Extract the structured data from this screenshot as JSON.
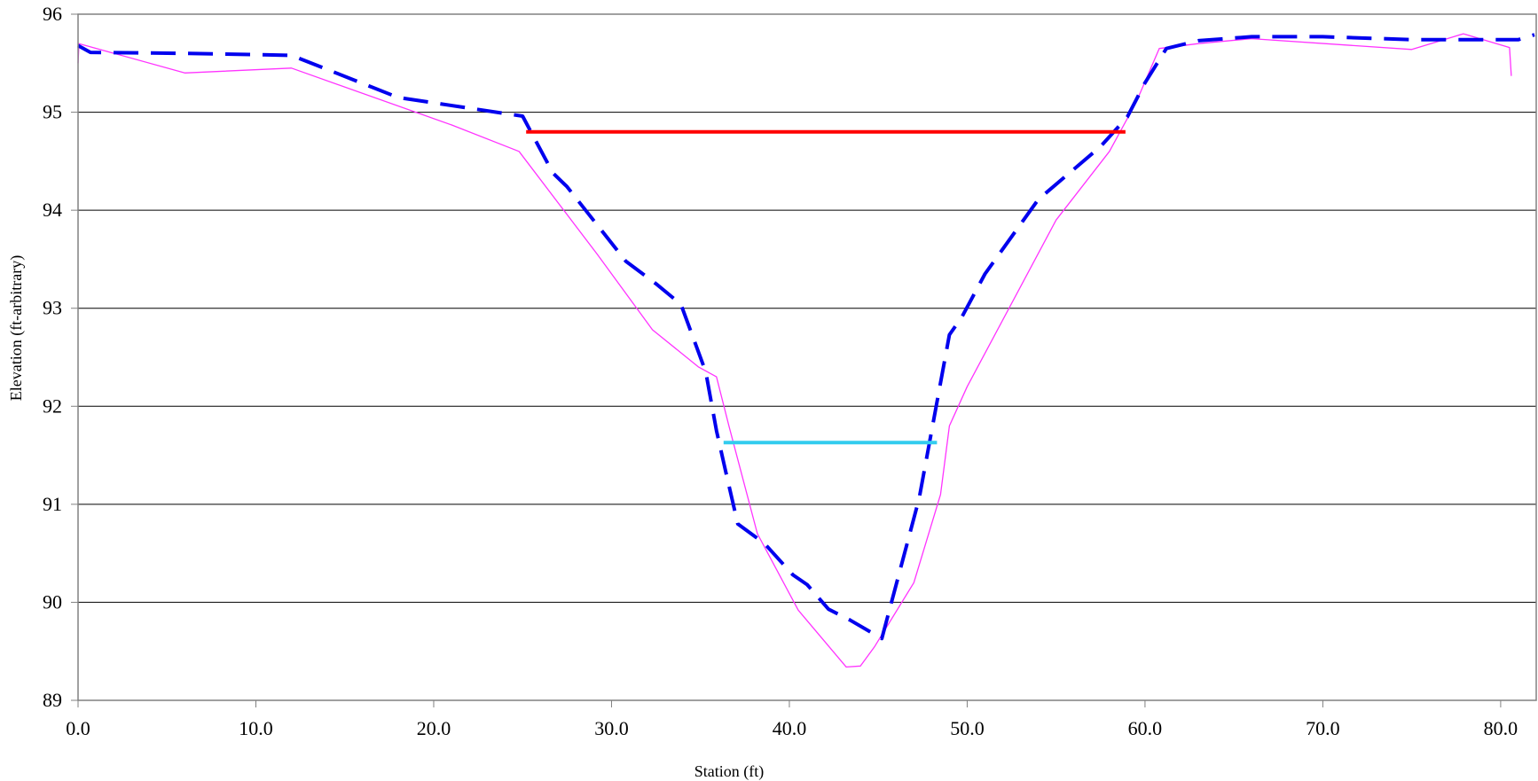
{
  "chart_data": {
    "type": "line",
    "title": "",
    "xlabel": "Station (ft)",
    "ylabel": "Elevation (ft-arbitrary)",
    "xlim": [
      0,
      82
    ],
    "ylim": [
      89,
      96
    ],
    "x_ticks": [
      0,
      10,
      20,
      30,
      40,
      50,
      60,
      70,
      80
    ],
    "x_tick_labels": [
      "0.0",
      "10.0",
      "20.0",
      "30.0",
      "40.0",
      "50.0",
      "60.0",
      "70.0",
      "80.0"
    ],
    "y_ticks": [
      89,
      90,
      91,
      92,
      93,
      94,
      95,
      96
    ],
    "y_tick_labels": [
      "89",
      "90",
      "91",
      "92",
      "93",
      "94",
      "95",
      "96"
    ],
    "grid": "horizontal",
    "legend": "none",
    "colors": {
      "series_1": "#ff33ff",
      "series_2": "#0000ee",
      "series_3": "#ff0000",
      "series_4": "#33ccee",
      "grid": "#000000",
      "axis": "#808080"
    },
    "series": [
      {
        "style": "thin-solid",
        "x": [
          0.0,
          0.05,
          6.0,
          12.0,
          21.0,
          24.8,
          29.2,
          32.3,
          34.9,
          35.9,
          36.6,
          38.2,
          40.5,
          43.2,
          44.0,
          44.8,
          47.0,
          48.5,
          49.0,
          50.0,
          55.0,
          58.0,
          59.5,
          60.8,
          63.0,
          66.0,
          75.0,
          77.9,
          80.5,
          80.6
        ],
        "y": [
          95.5,
          95.7,
          95.4,
          95.45,
          94.87,
          94.6,
          93.55,
          92.78,
          92.4,
          92.3,
          91.8,
          90.7,
          89.92,
          89.34,
          89.35,
          89.55,
          90.2,
          91.1,
          91.8,
          92.2,
          93.9,
          94.6,
          95.1,
          95.65,
          95.7,
          95.75,
          95.64,
          95.8,
          95.66,
          95.37
        ]
      },
      {
        "style": "thick-dashed",
        "x": [
          0.0,
          0.7,
          6.0,
          12.0,
          18.0,
          25.0,
          26.7,
          27.5,
          30.8,
          32.5,
          33.9,
          35.3,
          35.9,
          36.4,
          37.1,
          38.6,
          40.2,
          41.0,
          42.2,
          43.4,
          45.2,
          47.3,
          49.0,
          49.7,
          51.0,
          54.0,
          57.5,
          59.0,
          60.0,
          61.2,
          63.0,
          66.0,
          70.0,
          75.0,
          81.0,
          81.9
        ],
        "y": [
          95.68,
          95.61,
          95.6,
          95.58,
          95.15,
          94.96,
          94.38,
          94.24,
          93.48,
          93.25,
          93.04,
          92.35,
          91.75,
          91.35,
          90.8,
          90.6,
          90.28,
          90.18,
          89.93,
          89.82,
          89.63,
          91.06,
          92.73,
          92.91,
          93.35,
          94.11,
          94.65,
          94.95,
          95.3,
          95.65,
          95.73,
          95.77,
          95.77,
          95.74,
          95.74,
          95.79
        ]
      },
      {
        "style": "thick-solid",
        "x": [
          25.2,
          58.9
        ],
        "y": [
          94.8,
          94.8
        ]
      },
      {
        "style": "thick-solid",
        "x": [
          36.3,
          48.3
        ],
        "y": [
          91.63,
          91.63
        ]
      }
    ]
  }
}
